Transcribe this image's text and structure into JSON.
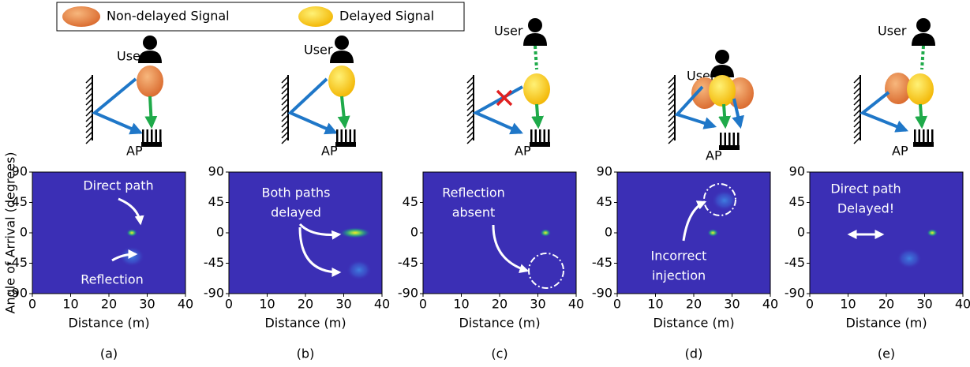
{
  "legend": {
    "non_delayed": "Non-delayed Signal",
    "delayed": "Delayed Signal"
  },
  "y_axis_label": "Angle of Arrival (degrees)",
  "panels": [
    {
      "label": "(a)",
      "user": "User",
      "ap": "AP",
      "xlabel": "Distance (m)",
      "xlim": [
        0,
        40
      ],
      "xticks": [
        0,
        10,
        20,
        30,
        40
      ],
      "ylim": [
        -90,
        90
      ],
      "yticks": [
        -90,
        -45,
        0,
        45,
        90
      ],
      "annotations": [
        "Direct path",
        "Reflection"
      ],
      "spots": [
        {
          "x": 26,
          "y": 0
        },
        {
          "x": 26,
          "y": -35
        }
      ]
    },
    {
      "label": "(b)",
      "user": "User",
      "ap": "AP",
      "xlabel": "Distance (m)",
      "xlim": [
        0,
        40
      ],
      "xticks": [
        0,
        10,
        20,
        30,
        40
      ],
      "ylim": [
        -90,
        90
      ],
      "yticks": [
        -90,
        -45,
        0,
        45,
        90
      ],
      "annotations": [
        "Both paths",
        "delayed"
      ],
      "spots": [
        {
          "x": 33,
          "y": 0
        },
        {
          "x": 34,
          "y": -55
        }
      ]
    },
    {
      "label": "(c)",
      "user": "User",
      "ap": "AP",
      "xlabel": "Distance (m)",
      "xlim": [
        0,
        40
      ],
      "xticks": [
        0,
        10,
        20,
        30,
        40
      ],
      "ylim": [
        -90,
        90
      ],
      "yticks": [
        -90,
        -45,
        0,
        45
      ],
      "annotations": [
        "Reflection",
        "absent"
      ],
      "spots": [
        {
          "x": 32,
          "y": 0
        }
      ]
    },
    {
      "label": "(d)",
      "user": "User",
      "ap": "AP",
      "xlabel": "Distance (m)",
      "xlim": [
        0,
        40
      ],
      "xticks": [
        0,
        10,
        20,
        30,
        40
      ],
      "ylim": [
        -90,
        90
      ],
      "yticks": [
        -90,
        -45,
        0,
        45,
        90
      ],
      "annotations": [
        "Incorrect",
        "injection"
      ],
      "spots": [
        {
          "x": 25,
          "y": 0
        },
        {
          "x": 28,
          "y": 48
        }
      ]
    },
    {
      "label": "(e)",
      "user": "User",
      "ap": "AP",
      "xlabel": "Distance (m)",
      "xlim": [
        0,
        40
      ],
      "xticks": [
        0,
        10,
        20,
        30,
        40
      ],
      "ylim": [
        -90,
        90
      ],
      "yticks": [
        -90,
        -45,
        0,
        45,
        90
      ],
      "annotations": [
        "Direct path",
        "Delayed!"
      ],
      "spots": [
        {
          "x": 32,
          "y": 0
        },
        {
          "x": 26,
          "y": -38
        }
      ]
    }
  ]
}
